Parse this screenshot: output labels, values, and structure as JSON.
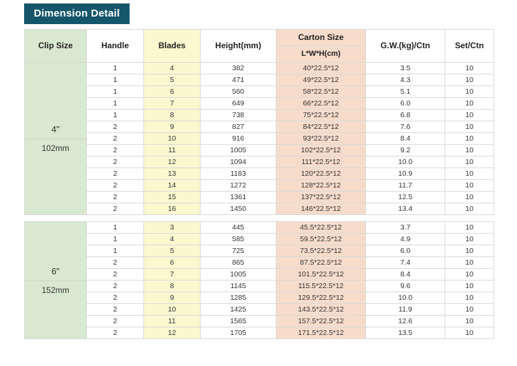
{
  "title": "Dimension Detail",
  "colors": {
    "title_bg": "#15566b",
    "clip_column": "#d9e8d0",
    "blades_column": "#fbf7cf",
    "carton_column": "#f7dccb",
    "border": "#d9d9d9"
  },
  "table": {
    "headers": {
      "clip_size": "Clip Size",
      "handle": "Handle",
      "blades": "Blades",
      "height": "Height(mm)",
      "carton_size": "Carton Size",
      "carton_sub": "L*W*H(cm)",
      "gw": "G.W.(kg)/Ctn",
      "set": "Set/Ctn"
    },
    "columns": [
      "Handle",
      "Blades",
      "Height(mm)",
      "Carton Size L*W*H(cm)",
      "G.W.(kg)/Ctn",
      "Set/Ctn"
    ],
    "groups": [
      {
        "clip_size": "4\"",
        "clip_mm": "102mm",
        "rows": [
          [
            "1",
            "4",
            "382",
            "40*22.5*12",
            "3.5",
            "10"
          ],
          [
            "1",
            "5",
            "471",
            "49*22.5*12",
            "4.3",
            "10"
          ],
          [
            "1",
            "6",
            "560",
            "58*22.5*12",
            "5.1",
            "10"
          ],
          [
            "1",
            "7",
            "649",
            "66*22.5*12",
            "6.0",
            "10"
          ],
          [
            "1",
            "8",
            "738",
            "75*22.5*12",
            "6.8",
            "10"
          ],
          [
            "2",
            "9",
            "827",
            "84*22.5*12",
            "7.6",
            "10"
          ],
          [
            "2",
            "10",
            "916",
            "93*22.5*12",
            "8.4",
            "10"
          ],
          [
            "2",
            "11",
            "1005",
            "102*22.5*12",
            "9.2",
            "10"
          ],
          [
            "2",
            "12",
            "1094",
            "111*22.5*12",
            "10.0",
            "10"
          ],
          [
            "2",
            "13",
            "1183",
            "120*22.5*12",
            "10.9",
            "10"
          ],
          [
            "2",
            "14",
            "1272",
            "128*22.5*12",
            "11.7",
            "10"
          ],
          [
            "2",
            "15",
            "1361",
            "137*22.5*12",
            "12.5",
            "10"
          ],
          [
            "2",
            "16",
            "1450",
            "146*22.5*12",
            "13.4",
            "10"
          ]
        ]
      },
      {
        "clip_size": "6\"",
        "clip_mm": "152mm",
        "rows": [
          [
            "1",
            "3",
            "445",
            "45.5*22.5*12",
            "3.7",
            "10"
          ],
          [
            "1",
            "4",
            "585",
            "59.5*22.5*12",
            "4.9",
            "10"
          ],
          [
            "1",
            "5",
            "725",
            "73.5*22.5*12",
            "6.0",
            "10"
          ],
          [
            "2",
            "6",
            "865",
            "87.5*22.5*12",
            "7.4",
            "10"
          ],
          [
            "2",
            "7",
            "1005",
            "101.5*22.5*12",
            "8.4",
            "10"
          ],
          [
            "2",
            "8",
            "1145",
            "115.5*22.5*12",
            "9.6",
            "10"
          ],
          [
            "2",
            "9",
            "1285",
            "129.5*22.5*12",
            "10.0",
            "10"
          ],
          [
            "2",
            "10",
            "1425",
            "143.5*22.5*12",
            "11.9",
            "10"
          ],
          [
            "2",
            "11",
            "1565",
            "157.5*22.5*12",
            "12.6",
            "10"
          ],
          [
            "2",
            "12",
            "1705",
            "171.5*22.5*12",
            "13.5",
            "10"
          ]
        ]
      }
    ]
  }
}
